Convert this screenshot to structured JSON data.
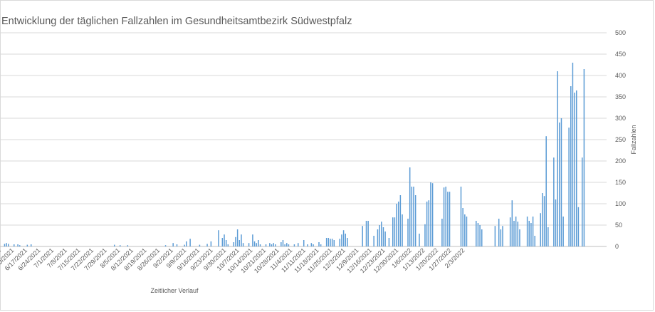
{
  "chart_data": {
    "type": "bar",
    "title": "Entwicklung der täglichen Fallzahlen im Gesundheitsamtbezirk Südwestpfalz",
    "xlabel": "Zeitlicher Verlauf",
    "ylabel": "Fallzahlen",
    "ylim": [
      0,
      500
    ],
    "y_ticks": [
      0,
      50,
      100,
      150,
      200,
      250,
      300,
      350,
      400,
      450,
      500
    ],
    "y_axis_side": "right",
    "grid": true,
    "legend": "none",
    "bar_color": "#5b9bd5",
    "x_tick_labels": [
      "6/3/2021",
      "6/10/2021",
      "6/17/2021",
      "6/24/2021",
      "7/1/2021",
      "7/8/2021",
      "7/15/2021",
      "7/22/2021",
      "7/29/2021",
      "8/5/2021",
      "8/12/2021",
      "8/19/2021",
      "8/26/2021",
      "9/2/2021",
      "9/9/2021",
      "9/16/2021",
      "9/23/2021",
      "9/30/2021",
      "10/7/2021",
      "10/14/2021",
      "10/21/2021",
      "10/28/2021",
      "11/4/2021",
      "11/11/2021",
      "11/18/2021",
      "11/25/2021",
      "12/2/2021",
      "12/9/2021",
      "12/16/2021",
      "12/23/2021",
      "12/30/2021",
      "1/6/2022",
      "1/13/2022",
      "1/20/2022",
      "1/27/2022",
      "2/3/2022"
    ],
    "x_start": "5/28/2021",
    "values": [
      0,
      0,
      18,
      10,
      8,
      0,
      0,
      0,
      0,
      6,
      8,
      6,
      0,
      0,
      5,
      0,
      5,
      3,
      0,
      0,
      0,
      4,
      0,
      5,
      0,
      0,
      0,
      0,
      0,
      0,
      0,
      0,
      0,
      0,
      0,
      0,
      0,
      0,
      0,
      0,
      0,
      0,
      0,
      0,
      0,
      0,
      0,
      0,
      0,
      0,
      0,
      0,
      0,
      0,
      0,
      0,
      0,
      0,
      0,
      0,
      0,
      0,
      0,
      0,
      0,
      0,
      0,
      4,
      0,
      0,
      3,
      0,
      0,
      0,
      3,
      0,
      0,
      0,
      0,
      0,
      0,
      0,
      0,
      0,
      0,
      0,
      0,
      0,
      0,
      0,
      0,
      0,
      0,
      0,
      3,
      0,
      0,
      0,
      8,
      0,
      5,
      0,
      0,
      0,
      4,
      12,
      0,
      18,
      0,
      0,
      0,
      0,
      4,
      0,
      0,
      0,
      6,
      0,
      12,
      0,
      0,
      0,
      38,
      0,
      20,
      28,
      15,
      5,
      0,
      0,
      10,
      22,
      40,
      15,
      28,
      8,
      0,
      0,
      8,
      0,
      28,
      12,
      8,
      15,
      5,
      0,
      0,
      5,
      0,
      8,
      5,
      8,
      5,
      0,
      0,
      10,
      15,
      5,
      8,
      5,
      0,
      0,
      5,
      0,
      8,
      0,
      0,
      15,
      0,
      5,
      0,
      8,
      5,
      0,
      0,
      10,
      5,
      0,
      0,
      20,
      20,
      18,
      18,
      15,
      0,
      0,
      18,
      28,
      38,
      30,
      20,
      0,
      0,
      0,
      0,
      0,
      0,
      0,
      48,
      0,
      60,
      60,
      0,
      0,
      25,
      0,
      40,
      50,
      58,
      45,
      35,
      0,
      20,
      0,
      68,
      68,
      100,
      105,
      120,
      75,
      0,
      0,
      65,
      185,
      140,
      140,
      120,
      0,
      30,
      0,
      0,
      52,
      105,
      108,
      150,
      148,
      0,
      0,
      0,
      0,
      65,
      138,
      140,
      128,
      128,
      0,
      0,
      0,
      0,
      0,
      140,
      90,
      75,
      70,
      0,
      0,
      0,
      0,
      60,
      55,
      50,
      40,
      0,
      0,
      0,
      0,
      0,
      0,
      48,
      0,
      65,
      40,
      48,
      0,
      0,
      0,
      68,
      108,
      60,
      70,
      58,
      40,
      0,
      0,
      0,
      70,
      60,
      55,
      70,
      25,
      0,
      0,
      78,
      125,
      118,
      258,
      45,
      0,
      0,
      208,
      110,
      410,
      290,
      300,
      70,
      0,
      0,
      278,
      375,
      430,
      360,
      365,
      92,
      0,
      208,
      415
    ]
  }
}
